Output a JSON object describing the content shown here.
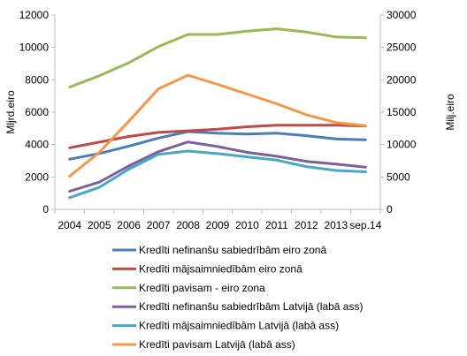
{
  "chart_data": {
    "type": "line",
    "categories": [
      "2004",
      "2005",
      "2006",
      "2007",
      "2008",
      "2009",
      "2010",
      "2011",
      "2012",
      "2013",
      "sep.14"
    ],
    "y_left": {
      "label": "Mljrd.eiro",
      "range": [
        0,
        12000
      ],
      "ticks": [
        "0",
        "2000",
        "4000",
        "6000",
        "8000",
        "10000",
        "12000"
      ]
    },
    "y_right": {
      "label": "Milj.eiro",
      "range": [
        0,
        30000
      ],
      "ticks": [
        "0",
        "5000",
        "10000",
        "15000",
        "20000",
        "25000",
        "30000"
      ]
    },
    "grid": false,
    "legend_position": "bottom",
    "series": [
      {
        "name": "Kredīti nefinanšu sabiedrībām eiro zonā",
        "axis": "left",
        "color": "#4a7ebb",
        "values": [
          3100,
          3450,
          3900,
          4400,
          4800,
          4700,
          4650,
          4700,
          4550,
          4350,
          4300
        ]
      },
      {
        "name": "Kredīti mājsaimniedībām eiro zonā",
        "axis": "left",
        "color": "#be4b48",
        "values": [
          3800,
          4150,
          4500,
          4750,
          4850,
          4950,
          5100,
          5200,
          5200,
          5200,
          5150
        ]
      },
      {
        "name": "Kredīti pavisam - eiro zona",
        "axis": "left",
        "color": "#98b954",
        "values": [
          7550,
          8250,
          9050,
          10050,
          10800,
          10800,
          11000,
          11150,
          10950,
          10650,
          10600
        ]
      },
      {
        "name": "Kredīti nefinanšu sabiedrībām Latvijā (labā ass)",
        "axis": "right",
        "color": "#7d5fa0",
        "values": [
          2800,
          4200,
          6700,
          8900,
          10400,
          9700,
          8800,
          8200,
          7400,
          7000,
          6500
        ]
      },
      {
        "name": "Kredīti mājsaimniedībām Latvijā (labā ass)",
        "axis": "right",
        "color": "#46aac5",
        "values": [
          1800,
          3400,
          6200,
          8500,
          9000,
          8600,
          8100,
          7600,
          6600,
          6000,
          5800
        ]
      },
      {
        "name": "Kredīti pavisam Latvijā (labā ass)",
        "axis": "right",
        "color": "#f79646",
        "values": [
          5100,
          8800,
          13600,
          18600,
          20700,
          19300,
          17800,
          16300,
          14600,
          13400,
          12900
        ]
      }
    ]
  }
}
